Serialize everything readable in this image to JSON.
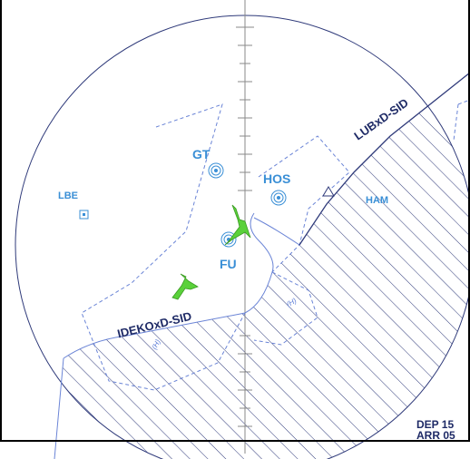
{
  "map": {
    "fixes": {
      "gt": "GT",
      "hos": "HOS",
      "fu": "FU",
      "lbe": "LBE",
      "ham": "HAM"
    },
    "routes": {
      "lubxd": "LUBxD-SID",
      "idekoxd": "IDEKOxD-SID"
    },
    "hold_marks": {
      "h1": "(H)",
      "h2": "(H)"
    },
    "runway_info": {
      "dep": "DEP 15",
      "arr": "ARR 05"
    }
  },
  "colors": {
    "circle": "#2f3a7a",
    "airspace": "#6a84d6",
    "fix_label": "#3a8fd6",
    "route": "#1e2a66",
    "aircraft": "#5ad13a"
  }
}
